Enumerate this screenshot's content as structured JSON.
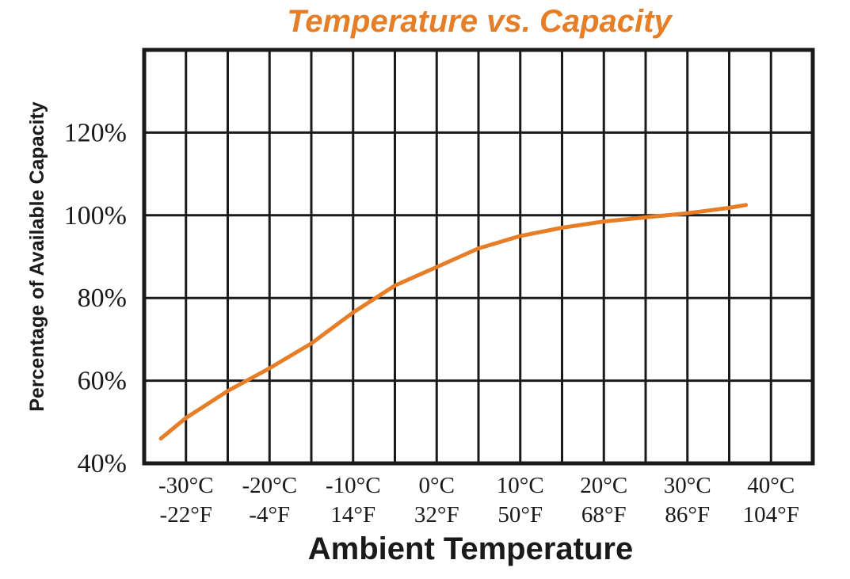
{
  "chart_data": {
    "type": "line",
    "title": "Temperature vs. Capacity",
    "xlabel": "Ambient Temperature",
    "ylabel": "Percentage of Available Capacity",
    "xlim": [
      -35,
      45
    ],
    "ylim": [
      40,
      140
    ],
    "x_ticks": [
      {
        "value": -30,
        "celsius": "-30°C",
        "fahrenheit": "-22°F"
      },
      {
        "value": -20,
        "celsius": "-20°C",
        "fahrenheit": "-4°F"
      },
      {
        "value": -10,
        "celsius": "-10°C",
        "fahrenheit": "14°F"
      },
      {
        "value": 0,
        "celsius": "0°C",
        "fahrenheit": "32°F"
      },
      {
        "value": 10,
        "celsius": "10°C",
        "fahrenheit": "50°F"
      },
      {
        "value": 20,
        "celsius": "20°C",
        "fahrenheit": "68°F"
      },
      {
        "value": 30,
        "celsius": "30°C",
        "fahrenheit": "86°F"
      },
      {
        "value": 40,
        "celsius": "40°C",
        "fahrenheit": "104°F"
      }
    ],
    "y_ticks": [
      {
        "value": 40,
        "label": "40%"
      },
      {
        "value": 60,
        "label": "60%"
      },
      {
        "value": 80,
        "label": "80%"
      },
      {
        "value": 100,
        "label": "100%"
      },
      {
        "value": 120,
        "label": "120%"
      }
    ],
    "x_gridlines": [
      -30,
      -25,
      -20,
      -15,
      -10,
      -5,
      0,
      5,
      10,
      15,
      20,
      25,
      30,
      35,
      40
    ],
    "y_gridlines": [
      60,
      80,
      100,
      120
    ],
    "grid": true,
    "legend": "none",
    "series": [
      {
        "color": "#e67e27",
        "points": [
          {
            "x": -33,
            "y": 46
          },
          {
            "x": -30,
            "y": 51
          },
          {
            "x": -25,
            "y": 57.5
          },
          {
            "x": -20,
            "y": 63
          },
          {
            "x": -15,
            "y": 69
          },
          {
            "x": -10,
            "y": 76.5
          },
          {
            "x": -5,
            "y": 83
          },
          {
            "x": 0,
            "y": 87.5
          },
          {
            "x": 5,
            "y": 92
          },
          {
            "x": 10,
            "y": 95
          },
          {
            "x": 15,
            "y": 97
          },
          {
            "x": 20,
            "y": 98.5
          },
          {
            "x": 25,
            "y": 99.5
          },
          {
            "x": 30,
            "y": 100.5
          },
          {
            "x": 35,
            "y": 101.8
          },
          {
            "x": 37,
            "y": 102.5
          }
        ]
      }
    ]
  }
}
